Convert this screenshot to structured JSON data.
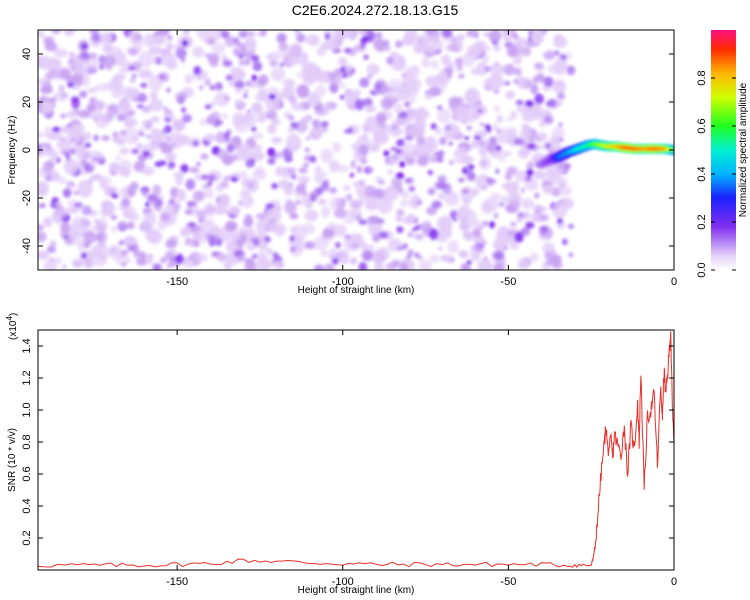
{
  "title": "C2E6.2024.272.18.13.G15",
  "chart_data": [
    {
      "type": "heatmap",
      "name": "spectrogram",
      "xlabel": "Height of straight line (km)",
      "ylabel": "Frequency (Hz)",
      "xlim": [
        -192,
        0
      ],
      "ylim": [
        -50,
        50
      ],
      "x_ticks": [
        -150,
        -100,
        -50,
        0
      ],
      "y_ticks": [
        -40,
        -20,
        0,
        20,
        40
      ],
      "x_tick_labels": [
        "-150",
        "-100",
        "-50",
        "0"
      ],
      "y_tick_labels": [
        "-40",
        "-20",
        "0",
        "20",
        "40"
      ],
      "colorbar": {
        "label": "Normalized spectral amplitude",
        "range": [
          0,
          1
        ],
        "ticks": [
          0.0,
          0.2,
          0.4,
          0.6,
          0.8
        ],
        "tick_labels": [
          "0.0",
          "0.2",
          "0.4",
          "0.6",
          "0.8"
        ],
        "colormap": "rainbow"
      },
      "noise_region": {
        "x_range": [
          -192,
          -31
        ],
        "freq_range": [
          -50,
          50
        ]
      },
      "signal_ridge": {
        "x": [
          -40,
          -37,
          -35,
          -32,
          -29,
          -26,
          -24,
          -22,
          -20,
          -18,
          -15,
          -12,
          -9,
          -6,
          -3,
          0
        ],
        "frequency": [
          -6,
          -4,
          -3,
          -1,
          0.5,
          2,
          2.5,
          2,
          1.5,
          1.5,
          1,
          0.5,
          0.5,
          0.5,
          0.5,
          0
        ],
        "amplitude": [
          0.15,
          0.2,
          0.35,
          0.4,
          0.5,
          0.55,
          0.65,
          0.7,
          0.75,
          0.8,
          0.9,
          0.9,
          0.85,
          0.9,
          0.85,
          0.6
        ]
      }
    },
    {
      "type": "line",
      "name": "snr",
      "xlabel": "Height of straight line (km)",
      "ylabel": "SNR (10 * v/v)",
      "y_multiplier": "(x10",
      "y_multiplier_exp": "4",
      "xlim": [
        -192,
        0
      ],
      "ylim": [
        0,
        1.5
      ],
      "x_ticks": [
        -150,
        -100,
        -50,
        0
      ],
      "y_ticks": [
        0.2,
        0.4,
        0.6,
        0.8,
        1.0,
        1.2,
        1.4
      ],
      "x_tick_labels": [
        "-150",
        "-100",
        "-50",
        "0"
      ],
      "y_tick_labels": [
        "0.2",
        "0.4",
        "0.6",
        "0.8",
        "1.0",
        "1.2",
        "1.4"
      ],
      "color": "#e8302a",
      "series": [
        {
          "x": [
            -192,
            -180,
            -170,
            -160,
            -150,
            -140,
            -130,
            -120,
            -110,
            -100,
            -90,
            -80,
            -70,
            -60,
            -50,
            -40,
            -32,
            -28,
            -25,
            -24,
            -23,
            -22,
            -21,
            -20.5,
            -20,
            -19,
            -18.5,
            -18,
            -17,
            -16,
            -15,
            -14,
            -13,
            -12,
            -11,
            -10.5,
            -10,
            -9,
            -8,
            -7,
            -6,
            -5,
            -4,
            -3.5,
            -3,
            -2.5,
            -2,
            -1.5,
            -1,
            -0.5,
            0
          ],
          "y": [
            0.03,
            0.03,
            0.03,
            0.03,
            0.035,
            0.04,
            0.06,
            0.055,
            0.045,
            0.04,
            0.035,
            0.035,
            0.035,
            0.035,
            0.035,
            0.035,
            0.03,
            0.03,
            0.03,
            0.1,
            0.35,
            0.6,
            0.8,
            0.9,
            0.75,
            0.8,
            0.7,
            0.85,
            0.78,
            0.72,
            0.9,
            0.6,
            0.9,
            0.75,
            1.05,
            0.8,
            1.25,
            0.5,
            0.95,
            1.0,
            1.1,
            0.65,
            1.15,
            0.95,
            1.25,
            1.1,
            1.2,
            1.35,
            1.5,
            1.0,
            0.8
          ]
        }
      ]
    }
  ]
}
